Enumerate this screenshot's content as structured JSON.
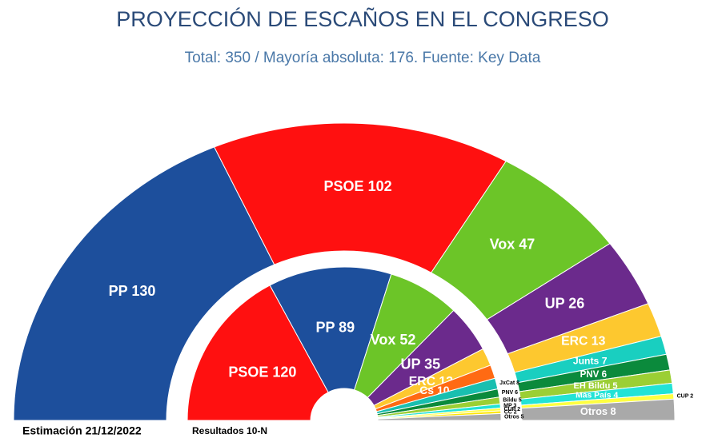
{
  "title": "PROYECCIÓN DE ESCAÑOS EN EL CONGRESO",
  "subtitle": "Total: 350 / Mayoría absoluta: 176. Fuente: Key Data",
  "chart_data": [
    {
      "type": "half-donut",
      "caption": "Estimación 21/12/2022",
      "values": [
        130,
        102,
        47,
        26,
        13,
        7,
        6,
        5,
        4,
        2,
        8
      ],
      "value_labels": [
        "PP 130",
        "PSOE 102",
        "Vox 47",
        "UP 26",
        "ERC 13",
        "Junts 7",
        "PNV 6",
        "EH Bildu 5",
        "Más País 4",
        "CUP 2",
        "Otros 8"
      ],
      "colors": [
        "#1d4f9c",
        "#ff1010",
        "#6cc528",
        "#6b2a8c",
        "#fdc82f",
        "#19cfc0",
        "#0b8a3c",
        "#9bcf34",
        "#22e3d6",
        "#ffff40",
        "#a9a9a9"
      ]
    },
    {
      "type": "half-donut",
      "caption": "Resultados 10-N",
      "values": [
        120,
        89,
        52,
        35,
        13,
        10,
        8,
        6,
        5,
        3,
        2,
        2,
        5
      ],
      "value_labels": [
        "PSOE 120",
        "PP 89",
        "Vox 52",
        "UP 35",
        "ERC 13",
        "Cs 10",
        "JxCat 8",
        "PNV 6",
        "Bildu 5",
        "MP 3",
        "CUP 2",
        "CC 2",
        "Otros 5"
      ],
      "colors": [
        "#ff1010",
        "#1d4f9c",
        "#6cc528",
        "#6b2a8c",
        "#fdc82f",
        "#ff6a13",
        "#19bfb0",
        "#0b8a3c",
        "#9bcf34",
        "#22e3d6",
        "#ffff40",
        "#ffe600",
        "#a9a9a9"
      ]
    }
  ]
}
